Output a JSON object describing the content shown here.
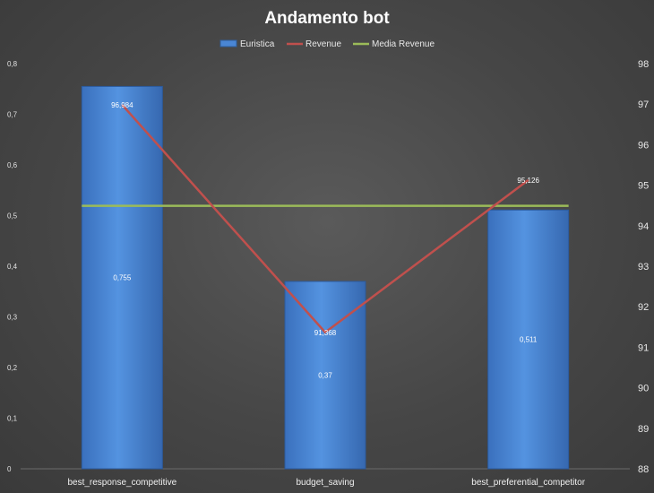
{
  "chart_data": {
    "type": "bar+line",
    "title": "Andamento bot",
    "categories": [
      "best_response_competitive",
      "budget_saving",
      "best_preferential_competitor"
    ],
    "series": [
      {
        "name": "Euristica",
        "type": "bar",
        "axis": "left",
        "color": "#4a86d4",
        "values": [
          0.755,
          0.37,
          0.511
        ],
        "labels": [
          "0,755",
          "0,37",
          "0,511"
        ]
      },
      {
        "name": "Revenue",
        "type": "line",
        "axis": "right",
        "color": "#c0504d",
        "values": [
          96.984,
          91.368,
          95.126
        ],
        "labels": [
          "96,984",
          "91,368",
          "95,126"
        ]
      },
      {
        "name": "Media Revenue",
        "type": "line",
        "axis": "right",
        "color": "#9bbb59",
        "values": [
          94.49,
          94.49,
          94.49
        ]
      }
    ],
    "y_left": {
      "min": 0,
      "max": 0.8,
      "step": 0.1,
      "ticks": [
        "0",
        "0,1",
        "0,2",
        "0,3",
        "0,4",
        "0,5",
        "0,6",
        "0,7",
        "0,8"
      ]
    },
    "y_right": {
      "min": 88,
      "max": 98,
      "step": 1,
      "ticks": [
        "88",
        "89",
        "90",
        "91",
        "92",
        "93",
        "94",
        "95",
        "96",
        "97",
        "98"
      ]
    },
    "grid": false,
    "legend_position": "top"
  }
}
